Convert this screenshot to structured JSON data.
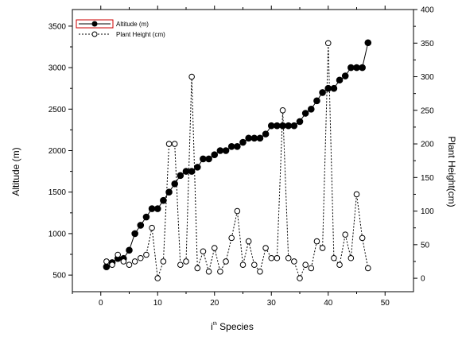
{
  "chart_data": {
    "type": "line",
    "xlabel": "i",
    "xlabel_sup": "th",
    "xlabel_suffix": " Species",
    "ylabel": "Altitude (m)",
    "y2label": "Plant Height(cm)",
    "xlim": [
      -5,
      55
    ],
    "ylim": [
      300,
      3700
    ],
    "y2lim": [
      -20,
      400
    ],
    "xticks": [
      "0",
      "10",
      "20",
      "30",
      "40",
      "50"
    ],
    "yticks": [
      "500",
      "1000",
      "1500",
      "2000",
      "2500",
      "3000",
      "3500"
    ],
    "y2ticks": [
      "0",
      "50",
      "100",
      "150",
      "200",
      "250",
      "300",
      "350",
      "400"
    ],
    "legend_position": "top-left",
    "series": [
      {
        "name": "Altitude (m)",
        "axis": "left",
        "marker": "filled-circle",
        "line": "solid",
        "x": [
          1,
          2,
          3,
          4,
          5,
          6,
          7,
          8,
          9,
          10,
          11,
          12,
          13,
          14,
          15,
          16,
          17,
          18,
          19,
          20,
          21,
          22,
          23,
          24,
          25,
          26,
          27,
          28,
          29,
          30,
          31,
          32,
          33,
          34,
          35,
          36,
          37,
          38,
          39,
          40,
          41,
          42,
          43,
          44,
          45,
          46,
          47
        ],
        "values": [
          600,
          650,
          700,
          700,
          800,
          1000,
          1100,
          1200,
          1300,
          1300,
          1400,
          1500,
          1600,
          1700,
          1750,
          1750,
          1800,
          1900,
          1900,
          1950,
          2000,
          2000,
          2050,
          2050,
          2100,
          2150,
          2150,
          2150,
          2200,
          2300,
          2300,
          2300,
          2300,
          2300,
          2350,
          2450,
          2500,
          2600,
          2700,
          2750,
          2750,
          2850,
          2900,
          3000,
          3000,
          3000,
          3300
        ]
      },
      {
        "name": "Plant Height (cm)",
        "axis": "right",
        "marker": "open-circle",
        "line": "dashed",
        "x": [
          1,
          2,
          3,
          4,
          5,
          6,
          7,
          8,
          9,
          10,
          11,
          12,
          13,
          14,
          15,
          16,
          17,
          18,
          19,
          20,
          21,
          22,
          23,
          24,
          25,
          26,
          27,
          28,
          29,
          30,
          31,
          32,
          33,
          34,
          35,
          36,
          37,
          38,
          39,
          40,
          41,
          42,
          43,
          44,
          45,
          46,
          47
        ],
        "values": [
          25,
          20,
          35,
          25,
          20,
          25,
          30,
          35,
          75,
          0,
          25,
          200,
          200,
          20,
          25,
          300,
          15,
          40,
          10,
          45,
          10,
          25,
          60,
          100,
          20,
          55,
          20,
          10,
          45,
          30,
          30,
          250,
          30,
          25,
          0,
          20,
          15,
          55,
          45,
          350,
          30,
          20,
          65,
          30,
          125,
          60,
          15
        ]
      }
    ]
  }
}
